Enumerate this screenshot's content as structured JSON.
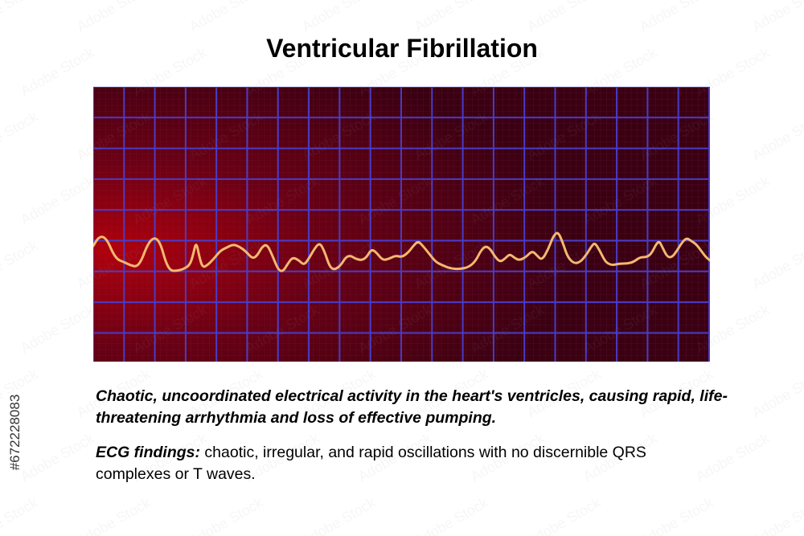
{
  "title": "Ventricular Fibrillation",
  "ecg": {
    "background_dark": "#3a0012",
    "background_glow": "#b0000c",
    "grid_major_color": "#4a3bc8",
    "grid_minor_color": "#7a2a55",
    "trace_color": "#f5b870"
  },
  "summary": "Chaotic, uncoordinated electrical activity in the heart's ventricles, causing rapid, life-threatening arrhythmia and loss of effective pumping.",
  "findings": {
    "label": "ECG findings:",
    "text": " chaotic, irregular, and rapid oscillations with no discernible QRS complexes or T waves."
  },
  "stock_id": "#672228083",
  "watermark": {
    "text": "Adobe Stock",
    "color": "#9a9a9a"
  }
}
